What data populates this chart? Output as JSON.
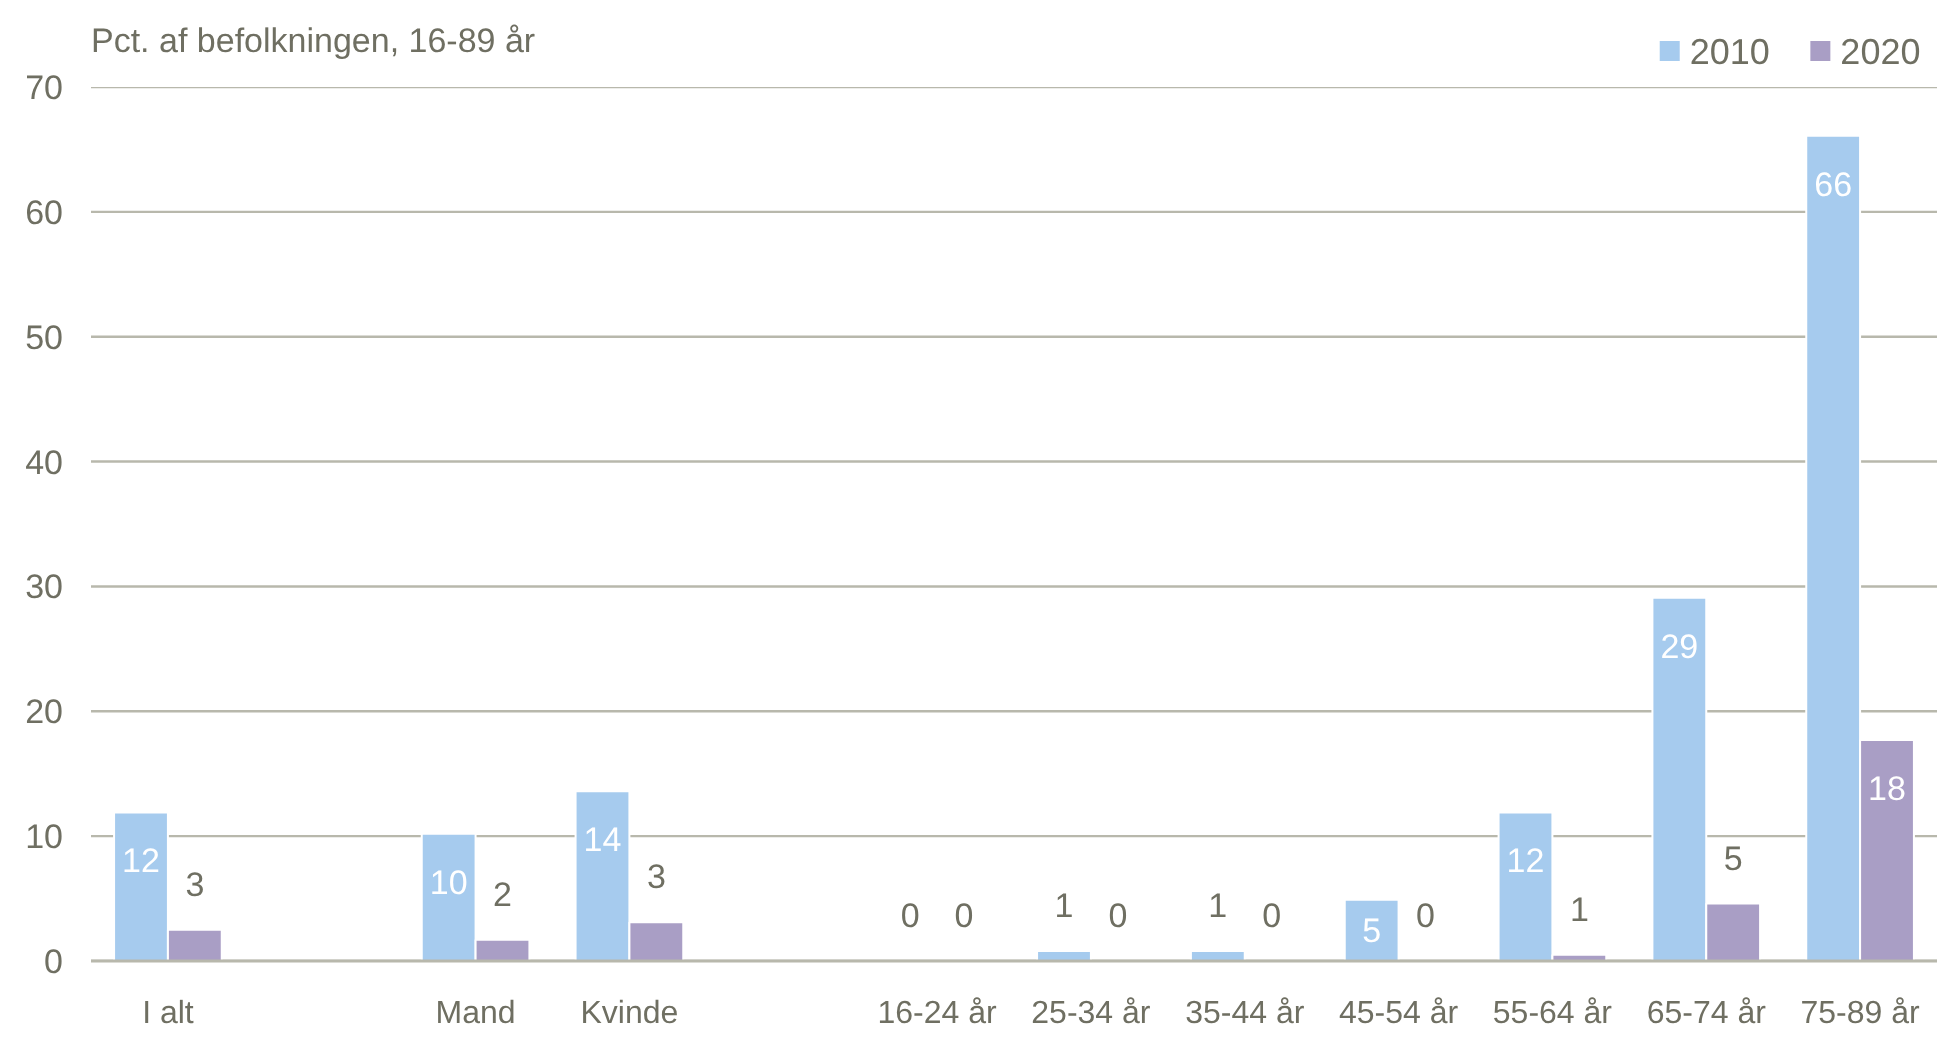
{
  "chart_data": {
    "type": "bar",
    "ylabel": "Pct. af befolkningen, 16-89 år",
    "categories": [
      "I alt",
      null,
      "Mand",
      "Kvinde",
      null,
      "16-24 år",
      "25-34 år",
      "35-44 år",
      "45-54 år",
      "55-64 år",
      "65-74 år",
      "75-89 år"
    ],
    "series": [
      {
        "name": "2010",
        "color": "#a6cbee",
        "values": [
          11.9,
          null,
          10.2,
          13.6,
          null,
          0,
          0.8,
          0.8,
          4.9,
          11.9,
          29.1,
          66.1
        ],
        "value_labels": [
          "12",
          null,
          "10",
          "14",
          null,
          "0",
          "1",
          "1",
          "5",
          "12",
          "29",
          "66"
        ]
      },
      {
        "name": "2020",
        "color": "#a99ec5",
        "values": [
          2.5,
          null,
          1.7,
          3.1,
          null,
          0,
          0,
          0,
          0,
          0.5,
          4.6,
          17.7
        ],
        "value_labels": [
          "3",
          null,
          "2",
          "3",
          null,
          "0",
          "0",
          "0",
          "0",
          "1",
          "5",
          "18"
        ]
      }
    ],
    "ylim": [
      0,
      70
    ],
    "yticks": [
      0,
      10,
      20,
      30,
      40,
      50,
      60,
      70
    ],
    "grid": "y",
    "legend": "top right"
  }
}
